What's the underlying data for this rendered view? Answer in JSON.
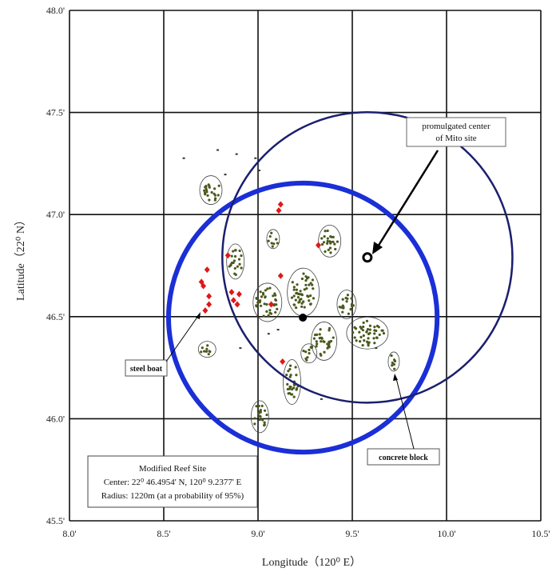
{
  "map": {
    "x_axis": {
      "title": "Longitude（120⁰ E）",
      "ticks": [
        "8.0'",
        "8.5'",
        "9.0'",
        "9.5'",
        "10.0'",
        "10.5'"
      ],
      "tick_values": [
        8.0,
        8.5,
        9.0,
        9.5,
        10.0,
        10.5
      ],
      "range": [
        8.0,
        10.5
      ]
    },
    "y_axis": {
      "title": "Latitude（22⁰ N）",
      "ticks": [
        "45.5'",
        "46.0'",
        "46.5'",
        "47.0'",
        "47.5'",
        "48.0'"
      ],
      "tick_values": [
        45.5,
        46.0,
        46.5,
        47.0,
        47.5,
        48.0
      ],
      "range": [
        45.5,
        48.0
      ]
    },
    "grid": true,
    "legend_box": {
      "line1": "Modified Reef Site",
      "line2": "Center: 22⁰ 46.4954' N, 120⁰ 9.2377' E",
      "line3": "Radius: 1220m (at a probability of 95%)"
    },
    "labels": {
      "promulgated_line1": "promulgated center",
      "promulgated_line2": "of Mito site",
      "steel_boat": "steel boat",
      "concrete_block": "concrete block"
    },
    "colors": {
      "modified_circle": "#1a2fd6",
      "promulgated_circle": "#1b1f6e",
      "steel_boat": "#e01818",
      "reef_blocks": "#4a5a1c"
    },
    "modified_circle": {
      "center_lon": 9.2377,
      "center_lat": 46.4954
    },
    "promulgated_circle": {
      "center_lon": 9.58,
      "center_lat": 46.79
    },
    "clusters": [
      {
        "lon": 8.75,
        "lat": 47.12
      },
      {
        "lon": 8.88,
        "lat": 46.77
      },
      {
        "lon": 9.08,
        "lat": 46.88
      },
      {
        "lon": 9.38,
        "lat": 46.87
      },
      {
        "lon": 9.05,
        "lat": 46.57
      },
      {
        "lon": 9.24,
        "lat": 46.62
      },
      {
        "lon": 9.35,
        "lat": 46.38
      },
      {
        "lon": 9.47,
        "lat": 46.56
      },
      {
        "lon": 9.58,
        "lat": 46.42
      },
      {
        "lon": 9.27,
        "lat": 46.32
      },
      {
        "lon": 9.18,
        "lat": 46.18
      },
      {
        "lon": 9.01,
        "lat": 46.01
      },
      {
        "lon": 8.73,
        "lat": 46.34
      },
      {
        "lon": 9.72,
        "lat": 46.28
      }
    ],
    "steel_boats": [
      {
        "lon": 9.12,
        "lat": 47.05
      },
      {
        "lon": 9.11,
        "lat": 47.02
      },
      {
        "lon": 8.73,
        "lat": 46.73
      },
      {
        "lon": 8.84,
        "lat": 46.8
      },
      {
        "lon": 8.7,
        "lat": 46.67
      },
      {
        "lon": 8.71,
        "lat": 46.65
      },
      {
        "lon": 8.74,
        "lat": 46.6
      },
      {
        "lon": 8.74,
        "lat": 46.56
      },
      {
        "lon": 8.72,
        "lat": 46.53
      },
      {
        "lon": 8.86,
        "lat": 46.62
      },
      {
        "lon": 8.87,
        "lat": 46.58
      },
      {
        "lon": 8.89,
        "lat": 46.56
      },
      {
        "lon": 8.9,
        "lat": 46.61
      },
      {
        "lon": 9.12,
        "lat": 46.7
      },
      {
        "lon": 9.07,
        "lat": 46.56
      },
      {
        "lon": 9.13,
        "lat": 46.28
      },
      {
        "lon": 9.32,
        "lat": 46.85
      }
    ]
  }
}
